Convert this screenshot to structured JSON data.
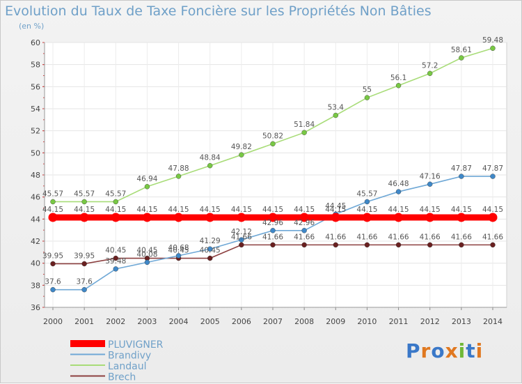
{
  "chart_data": {
    "type": "line",
    "title": "Evolution du Taux de Taxe Foncière sur les Propriétés Non Bâties",
    "subtitle": "(en %)",
    "xlabel": "",
    "ylabel": "",
    "ylim": [
      36,
      60
    ],
    "yticks": [
      36,
      38,
      40,
      42,
      44,
      46,
      48,
      50,
      52,
      54,
      56,
      58,
      60
    ],
    "categories": [
      "2000",
      "2001",
      "2002",
      "2003",
      "2004",
      "2005",
      "2006",
      "2007",
      "2008",
      "2009",
      "2010",
      "2011",
      "2012",
      "2013",
      "2014"
    ],
    "series": [
      {
        "name": "PLUVIGNER",
        "color": "#ff0000",
        "style": "thick",
        "values": [
          44.15,
          44.15,
          44.15,
          44.15,
          44.15,
          44.15,
          44.15,
          44.15,
          44.15,
          44.15,
          44.15,
          44.15,
          44.15,
          44.15,
          44.15
        ],
        "labels": [
          "44.15",
          "44.15",
          "44.15",
          "44.15",
          "44.15",
          "44.15",
          "44.15",
          "44.15",
          "44.15",
          "44.15",
          "44.15",
          "44.15",
          "44.15",
          "44.15",
          "44.15"
        ]
      },
      {
        "name": "Brandivy",
        "color": "#6fa8d6",
        "dot": "#3f88c8",
        "values": [
          37.6,
          37.6,
          39.48,
          40.08,
          40.68,
          41.29,
          42.12,
          42.96,
          42.96,
          44.45,
          45.57,
          46.48,
          47.16,
          47.87,
          47.87
        ],
        "labels": [
          "37.6",
          "37.6",
          "39.48",
          "40.08",
          "40.68",
          "41.29",
          "42.12",
          "42.96",
          "42.96",
          "44.45",
          "45.57",
          "46.48",
          "47.16",
          "47.87",
          "47.87"
        ]
      },
      {
        "name": "Landaul",
        "color": "#a8dc78",
        "dot": "#78c844",
        "values": [
          45.57,
          45.57,
          45.57,
          46.94,
          47.88,
          48.84,
          49.82,
          50.82,
          51.84,
          53.4,
          55,
          56.1,
          57.2,
          58.61,
          59.48
        ],
        "labels": [
          "45.57",
          "45.57",
          "45.57",
          "46.94",
          "47.88",
          "48.84",
          "49.82",
          "50.82",
          "51.84",
          "53.4",
          "55",
          "56.1",
          "57.2",
          "58.61",
          "59.48"
        ]
      },
      {
        "name": "Brech",
        "color": "#8c4040",
        "dot": "#6a2020",
        "values": [
          39.95,
          39.95,
          40.45,
          40.45,
          40.45,
          40.45,
          41.66,
          41.66,
          41.66,
          41.66,
          41.66,
          41.66,
          41.66,
          41.66,
          41.66
        ],
        "labels": [
          "39.95",
          "39.95",
          "40.45",
          "40.45",
          "40.45",
          "40.45",
          "41.66",
          "41.66",
          "41.66",
          "41.66",
          "41.66",
          "41.66",
          "41.66",
          "41.66",
          "41.66"
        ]
      }
    ],
    "legend_position": "bottom-left",
    "grid": true
  },
  "brand": {
    "logo_text": "Proxiti"
  }
}
